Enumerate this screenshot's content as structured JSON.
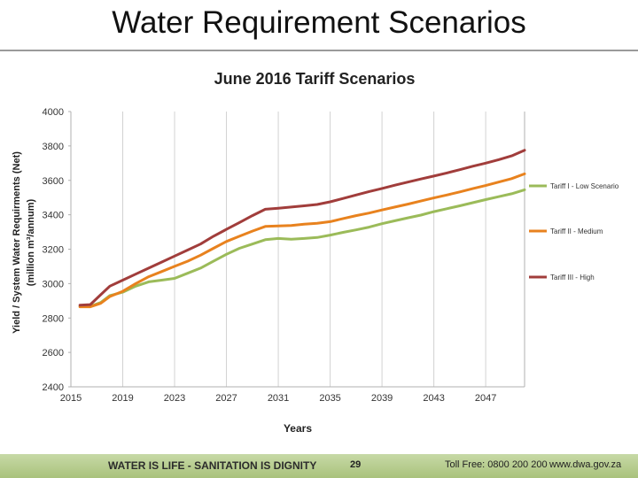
{
  "slide": {
    "title": "Water Requirement Scenarios"
  },
  "footer": {
    "slogan": "WATER IS LIFE - SANITATION IS DIGNITY",
    "page_number": "29",
    "toll_free": "Toll Free: 0800 200 200",
    "website": "www.dwa.gov.za",
    "colors": {
      "band": "#b5cc8a"
    }
  },
  "chart_data": {
    "type": "line",
    "title": "June 2016 Tariff Scenarios",
    "xlabel": "Years",
    "ylabel": "Yield / System Water Requirments (Net)",
    "ylabel_unit": "(million m³/annum)",
    "xlim": [
      2015,
      2050
    ],
    "ylim": [
      2400,
      4000
    ],
    "xticks": [
      2015,
      2019,
      2023,
      2027,
      2031,
      2035,
      2039,
      2043,
      2047
    ],
    "yticks": [
      2400,
      2600,
      2800,
      3000,
      3200,
      3400,
      3600,
      3800,
      4000
    ],
    "grid": "vertical",
    "legend_position": "right",
    "x": [
      2015.7,
      2016.5,
      2017.3,
      2018.0,
      2019.0,
      2020.0,
      2021.0,
      2022.0,
      2023.0,
      2024.0,
      2025.0,
      2026.0,
      2027.0,
      2028.0,
      2029.0,
      2030.0,
      2031.0,
      2032.0,
      2033.0,
      2034.0,
      2035.0,
      2036.0,
      2037.0,
      2038.0,
      2039.0,
      2040.0,
      2041.0,
      2042.0,
      2043.0,
      2044.0,
      2045.0,
      2046.0,
      2047.0,
      2048.0,
      2049.0,
      2050.0
    ],
    "series": [
      {
        "name": "Tariff I - Low Scenario",
        "color": "#9bbb59",
        "values": [
          2868,
          2868,
          2890,
          2930,
          2950,
          2985,
          3010,
          3020,
          3030,
          3060,
          3090,
          3130,
          3170,
          3205,
          3230,
          3255,
          3262,
          3258,
          3262,
          3268,
          3282,
          3298,
          3312,
          3328,
          3348,
          3365,
          3382,
          3398,
          3418,
          3435,
          3452,
          3470,
          3488,
          3505,
          3522,
          3545
        ]
      },
      {
        "name": "Tariff II - Medium",
        "color": "#e8821e",
        "values": [
          2865,
          2865,
          2885,
          2925,
          2955,
          3000,
          3040,
          3070,
          3100,
          3130,
          3165,
          3205,
          3245,
          3275,
          3305,
          3332,
          3335,
          3338,
          3345,
          3350,
          3360,
          3378,
          3395,
          3410,
          3428,
          3445,
          3462,
          3480,
          3498,
          3515,
          3533,
          3552,
          3570,
          3590,
          3610,
          3638
        ]
      },
      {
        "name": "Tariff III - High",
        "color": "#a13d3b",
        "values": [
          2875,
          2878,
          2935,
          2985,
          3020,
          3055,
          3090,
          3125,
          3160,
          3195,
          3230,
          3275,
          3315,
          3355,
          3395,
          3432,
          3438,
          3445,
          3452,
          3460,
          3475,
          3495,
          3515,
          3535,
          3553,
          3572,
          3590,
          3608,
          3625,
          3643,
          3662,
          3682,
          3700,
          3720,
          3742,
          3775
        ]
      }
    ]
  }
}
